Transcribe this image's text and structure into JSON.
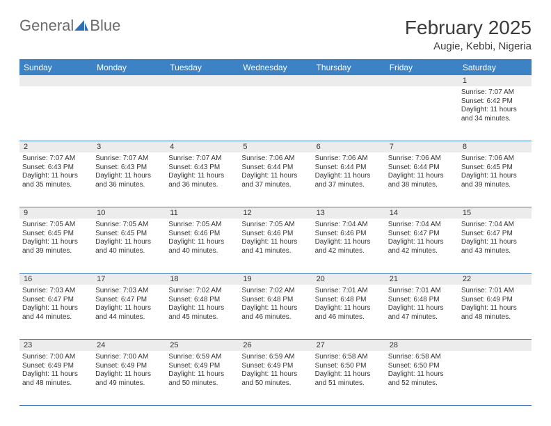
{
  "brand": {
    "part1": "General",
    "part2": "Blue",
    "sail_color": "#2f6fb3"
  },
  "title": {
    "month": "February 2025",
    "location": "Augie, Kebbi, Nigeria"
  },
  "colors": {
    "header_bar": "#3d82c4",
    "rule": "#3d7cc0",
    "daynum_bg": "#ececec",
    "text": "#333333",
    "logo_gray": "#6b6b6b"
  },
  "weekdays": [
    "Sunday",
    "Monday",
    "Tuesday",
    "Wednesday",
    "Thursday",
    "Friday",
    "Saturday"
  ],
  "weeks": [
    [
      null,
      null,
      null,
      null,
      null,
      null,
      {
        "n": "1",
        "sunrise": "7:07 AM",
        "sunset": "6:42 PM",
        "daylight": "11 hours and 34 minutes."
      }
    ],
    [
      {
        "n": "2",
        "sunrise": "7:07 AM",
        "sunset": "6:43 PM",
        "daylight": "11 hours and 35 minutes."
      },
      {
        "n": "3",
        "sunrise": "7:07 AM",
        "sunset": "6:43 PM",
        "daylight": "11 hours and 36 minutes."
      },
      {
        "n": "4",
        "sunrise": "7:07 AM",
        "sunset": "6:43 PM",
        "daylight": "11 hours and 36 minutes."
      },
      {
        "n": "5",
        "sunrise": "7:06 AM",
        "sunset": "6:44 PM",
        "daylight": "11 hours and 37 minutes."
      },
      {
        "n": "6",
        "sunrise": "7:06 AM",
        "sunset": "6:44 PM",
        "daylight": "11 hours and 37 minutes."
      },
      {
        "n": "7",
        "sunrise": "7:06 AM",
        "sunset": "6:44 PM",
        "daylight": "11 hours and 38 minutes."
      },
      {
        "n": "8",
        "sunrise": "7:06 AM",
        "sunset": "6:45 PM",
        "daylight": "11 hours and 39 minutes."
      }
    ],
    [
      {
        "n": "9",
        "sunrise": "7:05 AM",
        "sunset": "6:45 PM",
        "daylight": "11 hours and 39 minutes."
      },
      {
        "n": "10",
        "sunrise": "7:05 AM",
        "sunset": "6:45 PM",
        "daylight": "11 hours and 40 minutes."
      },
      {
        "n": "11",
        "sunrise": "7:05 AM",
        "sunset": "6:46 PM",
        "daylight": "11 hours and 40 minutes."
      },
      {
        "n": "12",
        "sunrise": "7:05 AM",
        "sunset": "6:46 PM",
        "daylight": "11 hours and 41 minutes."
      },
      {
        "n": "13",
        "sunrise": "7:04 AM",
        "sunset": "6:46 PM",
        "daylight": "11 hours and 42 minutes."
      },
      {
        "n": "14",
        "sunrise": "7:04 AM",
        "sunset": "6:47 PM",
        "daylight": "11 hours and 42 minutes."
      },
      {
        "n": "15",
        "sunrise": "7:04 AM",
        "sunset": "6:47 PM",
        "daylight": "11 hours and 43 minutes."
      }
    ],
    [
      {
        "n": "16",
        "sunrise": "7:03 AM",
        "sunset": "6:47 PM",
        "daylight": "11 hours and 44 minutes."
      },
      {
        "n": "17",
        "sunrise": "7:03 AM",
        "sunset": "6:47 PM",
        "daylight": "11 hours and 44 minutes."
      },
      {
        "n": "18",
        "sunrise": "7:02 AM",
        "sunset": "6:48 PM",
        "daylight": "11 hours and 45 minutes."
      },
      {
        "n": "19",
        "sunrise": "7:02 AM",
        "sunset": "6:48 PM",
        "daylight": "11 hours and 46 minutes."
      },
      {
        "n": "20",
        "sunrise": "7:01 AM",
        "sunset": "6:48 PM",
        "daylight": "11 hours and 46 minutes."
      },
      {
        "n": "21",
        "sunrise": "7:01 AM",
        "sunset": "6:48 PM",
        "daylight": "11 hours and 47 minutes."
      },
      {
        "n": "22",
        "sunrise": "7:01 AM",
        "sunset": "6:49 PM",
        "daylight": "11 hours and 48 minutes."
      }
    ],
    [
      {
        "n": "23",
        "sunrise": "7:00 AM",
        "sunset": "6:49 PM",
        "daylight": "11 hours and 48 minutes."
      },
      {
        "n": "24",
        "sunrise": "7:00 AM",
        "sunset": "6:49 PM",
        "daylight": "11 hours and 49 minutes."
      },
      {
        "n": "25",
        "sunrise": "6:59 AM",
        "sunset": "6:49 PM",
        "daylight": "11 hours and 50 minutes."
      },
      {
        "n": "26",
        "sunrise": "6:59 AM",
        "sunset": "6:49 PM",
        "daylight": "11 hours and 50 minutes."
      },
      {
        "n": "27",
        "sunrise": "6:58 AM",
        "sunset": "6:50 PM",
        "daylight": "11 hours and 51 minutes."
      },
      {
        "n": "28",
        "sunrise": "6:58 AM",
        "sunset": "6:50 PM",
        "daylight": "11 hours and 52 minutes."
      },
      null
    ]
  ],
  "labels": {
    "sunrise": "Sunrise: ",
    "sunset": "Sunset: ",
    "daylight": "Daylight: "
  }
}
